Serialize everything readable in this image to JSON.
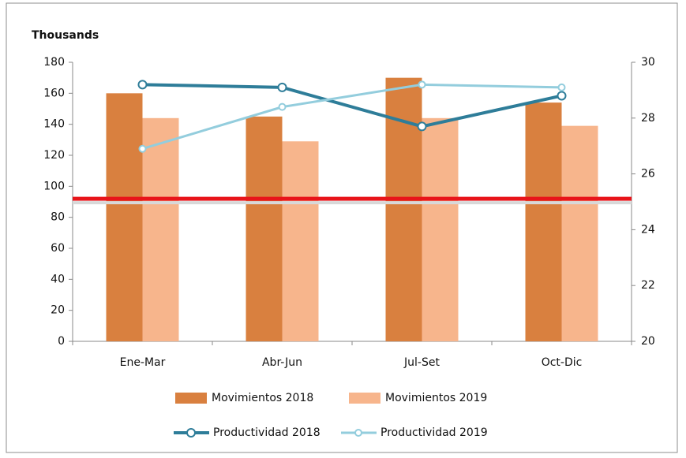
{
  "chart_data": {
    "type": "bar",
    "y_axis_label": "Thousands",
    "categories": [
      "Ene-Mar",
      "Abr-Jun",
      "Jul-Set",
      "Oct-Dic"
    ],
    "series": [
      {
        "name": "Movimientos 2018",
        "type": "bar",
        "color": "#d9803f",
        "values": [
          160,
          145,
          170,
          154
        ]
      },
      {
        "name": "Movimientos 2019",
        "type": "bar",
        "color": "#f7b58c",
        "values": [
          144,
          129,
          144,
          139
        ]
      },
      {
        "name": "Productividad 2018",
        "type": "line",
        "axis": "y2",
        "color": "#2e7d99",
        "values": [
          29.2,
          29.1,
          27.7,
          28.8
        ]
      },
      {
        "name": "Productividad 2019",
        "type": "line",
        "axis": "y2",
        "color": "#93cddd",
        "values": [
          26.9,
          28.4,
          29.2,
          29.1
        ]
      }
    ],
    "reference_line": {
      "value": 92,
      "color": "#e8141a"
    },
    "ylim": [
      0,
      180
    ],
    "yticks": [
      0,
      20,
      40,
      60,
      80,
      100,
      120,
      140,
      160,
      180
    ],
    "y2lim": [
      20,
      30
    ],
    "y2ticks": [
      20,
      22,
      24,
      26,
      28,
      30
    ],
    "grid": false
  }
}
